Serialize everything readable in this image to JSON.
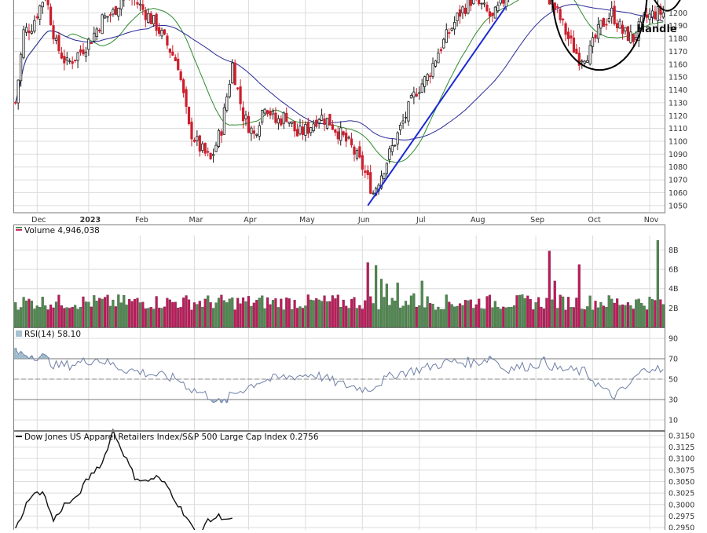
{
  "chart_data": [
    {
      "type": "candlestick",
      "panel": "price",
      "x_labels": [
        "Dec",
        "2023",
        "Feb",
        "Mar",
        "Apr",
        "May",
        "Jun",
        "Jul",
        "Aug",
        "Sep",
        "Oct",
        "Nov"
      ],
      "ylim": [
        1045,
        1210
      ],
      "y_ticks": [
        1050,
        1060,
        1070,
        1080,
        1090,
        1100,
        1110,
        1120,
        1130,
        1140,
        1150,
        1160,
        1170,
        1180,
        1190,
        1200
      ],
      "annotation": "Handle",
      "sma_short_color": "#2e8b2e",
      "sma_long_color": "#2a2a9a",
      "trendline_color": "#1a2ad6",
      "up_color": "#1a1a1a",
      "down_color": "#cc1f2d",
      "keypoints": [
        [
          0,
          1130
        ],
        [
          3,
          1185
        ],
        [
          6,
          1190
        ],
        [
          11,
          1215
        ],
        [
          15,
          1175
        ],
        [
          19,
          1160
        ],
        [
          24,
          1170
        ],
        [
          28,
          1180
        ],
        [
          32,
          1195
        ],
        [
          36,
          1200
        ],
        [
          40,
          1215
        ],
        [
          44,
          1210
        ],
        [
          48,
          1200
        ],
        [
          52,
          1190
        ],
        [
          56,
          1175
        ],
        [
          60,
          1160
        ],
        [
          64,
          1110
        ],
        [
          68,
          1095
        ],
        [
          72,
          1085
        ],
        [
          76,
          1110
        ],
        [
          80,
          1160
        ],
        [
          84,
          1120
        ],
        [
          88,
          1105
        ],
        [
          92,
          1130
        ],
        [
          96,
          1115
        ],
        [
          100,
          1120
        ],
        [
          104,
          1105
        ],
        [
          108,
          1110
        ],
        [
          112,
          1120
        ],
        [
          116,
          1115
        ],
        [
          120,
          1105
        ],
        [
          124,
          1095
        ],
        [
          128,
          1080
        ],
        [
          132,
          1060
        ],
        [
          136,
          1080
        ],
        [
          140,
          1100
        ],
        [
          144,
          1120
        ],
        [
          148,
          1140
        ],
        [
          152,
          1150
        ],
        [
          156,
          1170
        ],
        [
          160,
          1185
        ],
        [
          164,
          1200
        ],
        [
          168,
          1210
        ],
        [
          172,
          1205
        ],
        [
          176,
          1195
        ],
        [
          180,
          1210
        ],
        [
          184,
          1225
        ],
        [
          188,
          1235
        ],
        [
          192,
          1230
        ],
        [
          196,
          1215
        ],
        [
          200,
          1200
        ],
        [
          204,
          1180
        ],
        [
          208,
          1165
        ],
        [
          212,
          1170
        ],
        [
          216,
          1190
        ],
        [
          220,
          1200
        ],
        [
          224,
          1185
        ],
        [
          228,
          1180
        ],
        [
          232,
          1195
        ],
        [
          236,
          1200
        ]
      ]
    },
    {
      "type": "bar",
      "panel": "volume",
      "title": "Volume 4,946,038",
      "ylim": [
        0,
        9.5
      ],
      "y_ticks": [
        "2B",
        "4B",
        "6B",
        "8B"
      ],
      "y_tick_values": [
        2,
        4,
        6,
        8
      ],
      "up_color": "#4e8a4e",
      "down_color": "#c2185b",
      "spikes": [
        [
          130,
          6.7
        ],
        [
          133,
          6.4
        ],
        [
          135,
          5.0
        ],
        [
          137,
          4.5
        ],
        [
          141,
          4.6
        ],
        [
          147,
          3.5
        ],
        [
          150,
          4.8
        ],
        [
          197,
          7.9
        ],
        [
          199,
          4.8
        ],
        [
          208,
          6.5
        ],
        [
          237,
          9.0
        ]
      ]
    },
    {
      "type": "line",
      "panel": "rsi",
      "title": "RSI(14) 58.10",
      "ylim": [
        0,
        100
      ],
      "y_ticks": [
        10,
        30,
        50,
        70,
        90
      ],
      "line_color": "#6f7fa6",
      "fill_color": "#7fa6b9",
      "keypoints": [
        [
          0,
          76
        ],
        [
          10,
          72
        ],
        [
          15,
          63
        ],
        [
          20,
          64
        ],
        [
          30,
          70
        ],
        [
          40,
          60
        ],
        [
          50,
          55
        ],
        [
          60,
          50
        ],
        [
          65,
          40
        ],
        [
          72,
          33
        ],
        [
          76,
          25
        ],
        [
          80,
          35
        ],
        [
          90,
          48
        ],
        [
          100,
          52
        ],
        [
          110,
          55
        ],
        [
          120,
          45
        ],
        [
          130,
          40
        ],
        [
          140,
          55
        ],
        [
          150,
          60
        ],
        [
          160,
          67
        ],
        [
          170,
          66
        ],
        [
          176,
          72
        ],
        [
          180,
          60
        ],
        [
          190,
          63
        ],
        [
          195,
          67
        ],
        [
          200,
          60
        ],
        [
          210,
          57
        ],
        [
          216,
          42
        ],
        [
          220,
          33
        ],
        [
          225,
          40
        ],
        [
          230,
          55
        ],
        [
          235,
          63
        ],
        [
          238,
          58
        ]
      ]
    },
    {
      "type": "line",
      "panel": "ratio",
      "title": "Dow Jones US Apparel Retailers Index/S&P 500 Large Cap Index 0.2756",
      "ylim": [
        0.2945,
        0.316
      ],
      "y_ticks": [
        0.315,
        0.3125,
        0.31,
        0.3075,
        0.305,
        0.3025,
        0.3,
        0.2975,
        0.295
      ],
      "line_color": "#111111",
      "keypoints": [
        [
          0,
          0.2945
        ],
        [
          5,
          0.3015
        ],
        [
          10,
          0.303
        ],
        [
          14,
          0.2965
        ],
        [
          18,
          0.3
        ],
        [
          22,
          0.301
        ],
        [
          26,
          0.305
        ],
        [
          30,
          0.308
        ],
        [
          32,
          0.309
        ],
        [
          36,
          0.316
        ],
        [
          40,
          0.311
        ],
        [
          44,
          0.306
        ],
        [
          48,
          0.305
        ],
        [
          52,
          0.306
        ],
        [
          56,
          0.304
        ],
        [
          60,
          0.3
        ],
        [
          64,
          0.2965
        ],
        [
          67,
          0.293
        ],
        [
          70,
          0.296
        ],
        [
          75,
          0.2975
        ],
        [
          80,
          0.2965
        ]
      ]
    }
  ],
  "colors": {
    "grid": "#dcdcdc",
    "panel_border": "#7a7a7a",
    "axis_text": "#333333"
  }
}
